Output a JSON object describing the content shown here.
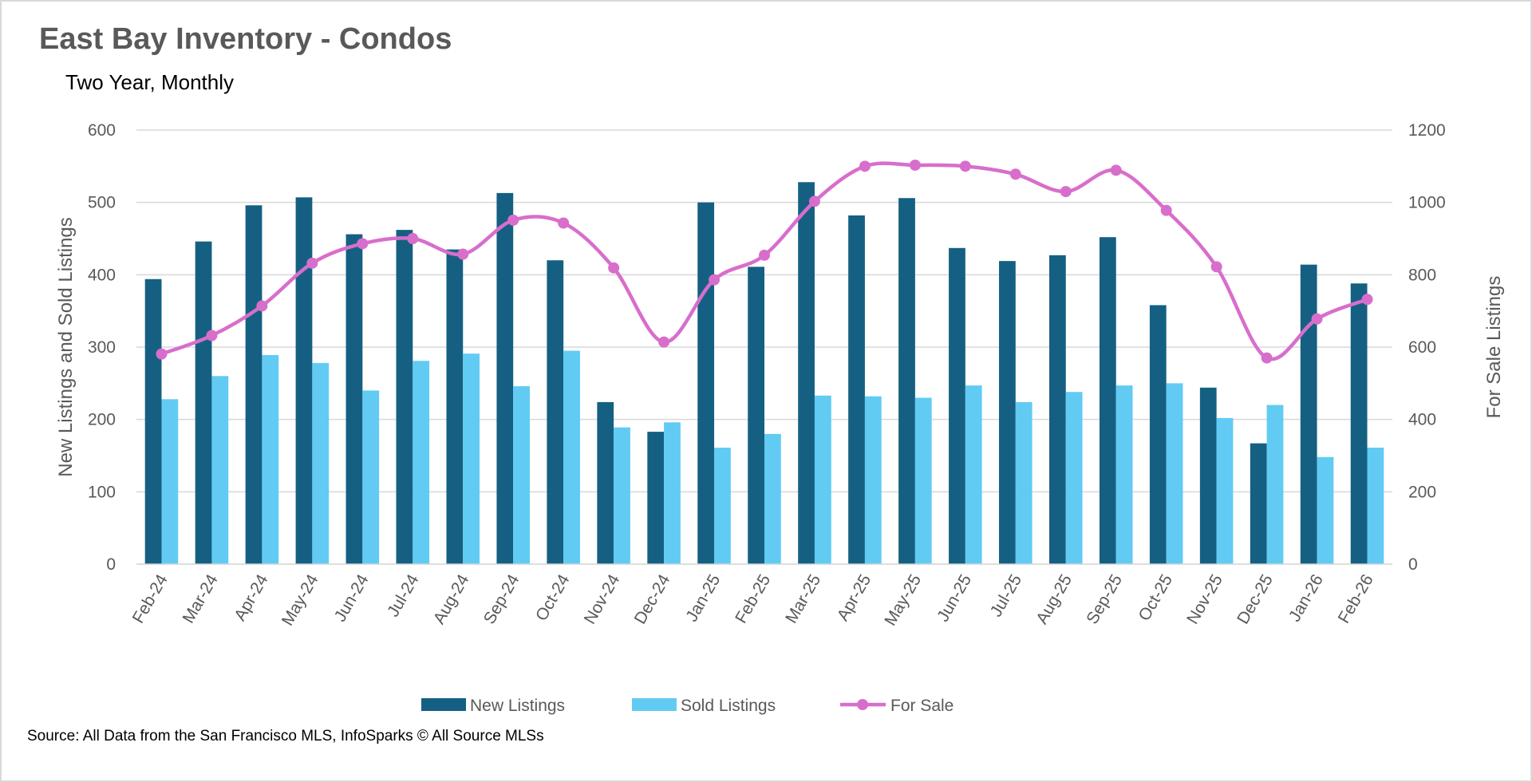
{
  "chart_data": {
    "type": "bar",
    "title": "East Bay Inventory - Condos",
    "subtitle": "Two Year, Monthly",
    "source": "Source: All Data from the San Francisco MLS, InfoSparks © All Source MLSs",
    "ylabel": "New Listings and Sold Listings",
    "y2label": "For Sale Listings",
    "ylim": [
      0,
      600
    ],
    "y2lim": [
      0,
      1200
    ],
    "yticks": [
      0,
      100,
      200,
      300,
      400,
      500,
      600
    ],
    "y2ticks": [
      0,
      200,
      400,
      600,
      800,
      1000,
      1200
    ],
    "grid": true,
    "legend_position": "bottom",
    "categories": [
      "Feb-24",
      "Mar-24",
      "Apr-24",
      "May-24",
      "Jun-24",
      "Jul-24",
      "Aug-24",
      "Sep-24",
      "Oct-24",
      "Nov-24",
      "Dec-24",
      "Jan-25",
      "Feb-25",
      "Mar-25",
      "Apr-25",
      "May-25",
      "Jun-25",
      "Jul-25",
      "Aug-25",
      "Sep-25",
      "Oct-25",
      "Nov-25",
      "Dec-25",
      "Jan-26",
      "Feb-26"
    ],
    "series": [
      {
        "name": "New Listings",
        "type": "bar",
        "axis": "left",
        "color": "#156082",
        "values": [
          394,
          446,
          496,
          507,
          456,
          462,
          435,
          513,
          420,
          224,
          183,
          500,
          411,
          528,
          482,
          506,
          437,
          419,
          427,
          452,
          358,
          244,
          167,
          414,
          388
        ]
      },
      {
        "name": "Sold Listings",
        "type": "bar",
        "axis": "left",
        "color": "#61cbf4",
        "values": [
          228,
          260,
          289,
          278,
          240,
          281,
          291,
          246,
          295,
          189,
          196,
          161,
          180,
          233,
          232,
          230,
          247,
          224,
          238,
          247,
          250,
          202,
          220,
          148,
          161
        ]
      },
      {
        "name": "For Sale",
        "type": "line",
        "axis": "right",
        "color": "#d86ecc",
        "smooth": true,
        "markers": true,
        "values": [
          581,
          632,
          714,
          832,
          886,
          900,
          857,
          951,
          943,
          819,
          614,
          786,
          854,
          1003,
          1100,
          1103,
          1100,
          1078,
          1030,
          1089,
          978,
          822,
          570,
          678,
          732
        ]
      }
    ]
  }
}
